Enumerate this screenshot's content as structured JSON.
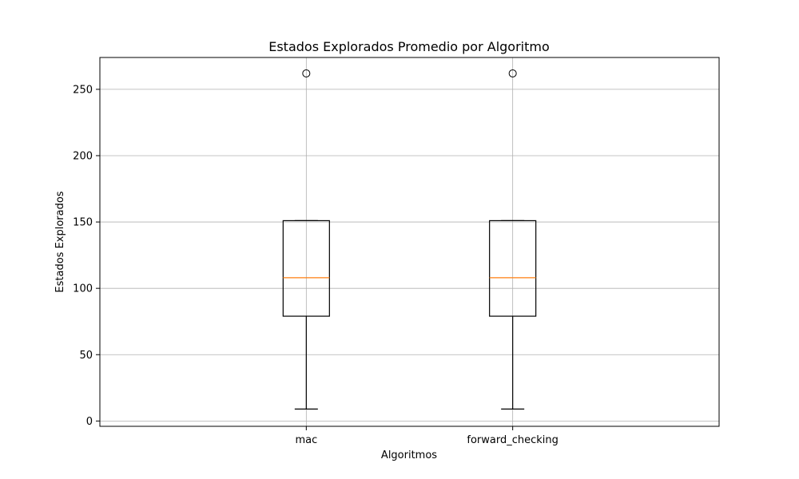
{
  "chart_data": {
    "type": "box",
    "title": "Estados Explorados Promedio por Algoritmo",
    "xlabel": "Algoritmos",
    "ylabel": "Estados Explorados",
    "categories": [
      "mac",
      "forward_checking"
    ],
    "ylim": [
      -4,
      274
    ],
    "yticks": [
      0,
      50,
      100,
      150,
      200,
      250
    ],
    "grid": true,
    "boxes": [
      {
        "name": "mac",
        "whisker_low": 9,
        "q1": 79,
        "median": 108,
        "q3": 151,
        "whisker_high": 151,
        "outliers": [
          262
        ]
      },
      {
        "name": "forward_checking",
        "whisker_low": 9,
        "q1": 79,
        "median": 108,
        "q3": 151,
        "whisker_high": 151,
        "outliers": [
          262
        ]
      }
    ],
    "colors": {
      "box": "#000000",
      "median": "#ff7f0e",
      "grid": "#b0b0b0"
    }
  }
}
